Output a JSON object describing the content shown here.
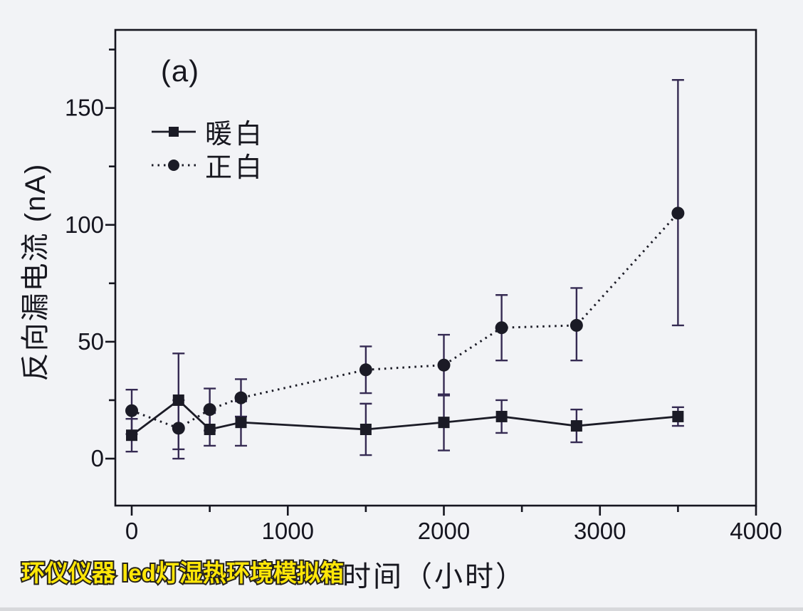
{
  "figure": {
    "watermark": "环仪仪器 led灯湿热环境模拟箱"
  },
  "chart_data": {
    "type": "line",
    "title": "(a)",
    "xlabel": "时间（小时）",
    "ylabel": "反向漏电流 (nA)",
    "xlim": [
      -105,
      4000
    ],
    "ylim": [
      -20,
      183
    ],
    "x_major_ticks": [
      0,
      1000,
      2000,
      3000,
      4000
    ],
    "x_minor_ticks": [
      500,
      1500,
      2500,
      3500
    ],
    "y_major_ticks": [
      0,
      50,
      100,
      150
    ],
    "y_minor_ticks": [
      25,
      75,
      125,
      175
    ],
    "grid": false,
    "legend_position": "top-left",
    "x": [
      0,
      300,
      500,
      700,
      1500,
      2000,
      2370,
      2850,
      3500
    ],
    "series": [
      {
        "name": "暖白",
        "marker": "square",
        "line_style": "solid",
        "values": [
          10,
          25,
          12.5,
          15.5,
          12.5,
          15.5,
          18,
          14,
          18
        ],
        "err_up": [
          7,
          20,
          7,
          9,
          11,
          12,
          7,
          7,
          4
        ],
        "err_down": [
          7,
          21,
          7,
          10,
          11,
          12,
          7,
          7,
          4
        ]
      },
      {
        "name": "正白",
        "marker": "circle",
        "line_style": "dotted",
        "values": [
          20.5,
          13,
          21,
          26,
          38,
          40,
          56,
          57,
          105
        ],
        "err_up": [
          9,
          12,
          9,
          8,
          10,
          13,
          14,
          16,
          57
        ],
        "err_down": [
          10,
          13,
          9,
          8,
          10,
          13,
          14,
          15,
          48
        ]
      }
    ],
    "colors": {
      "series": "#1b1b26",
      "error_bar": "#352a52",
      "frame": "#15151f",
      "background": "#f2f3f6",
      "watermark_fill": "#ffe607",
      "watermark_outline": "#26231c"
    }
  }
}
